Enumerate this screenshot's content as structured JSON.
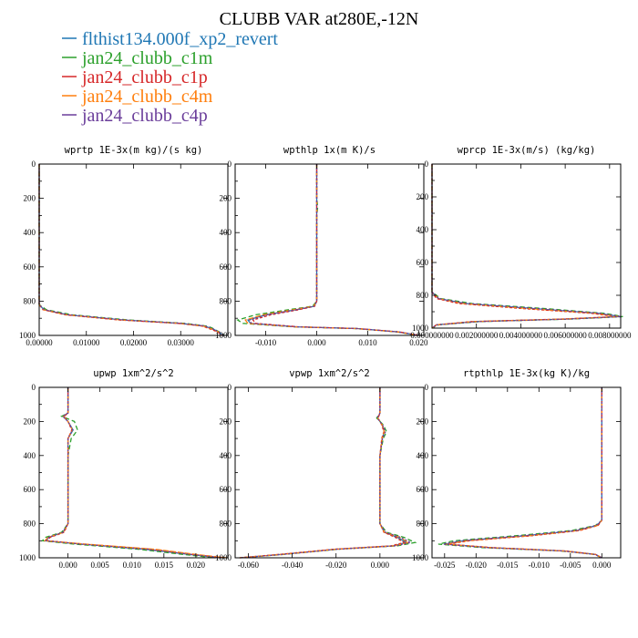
{
  "figure": {
    "title": "CLUBB VAR at280E,-12N"
  },
  "legend": [
    {
      "label": "flthist134.000f_xp2_revert",
      "color": "#1f77b4"
    },
    {
      "label": "jan24_clubb_c1m",
      "color": "#2ca02c"
    },
    {
      "label": "jan24_clubb_c1p",
      "color": "#d62728"
    },
    {
      "label": "jan24_clubb_c4m",
      "color": "#ff7f0e"
    },
    {
      "label": "jan24_clubb_c4p",
      "color": "#6a3d9a"
    }
  ],
  "chart_data": [
    {
      "type": "line",
      "title": "wprtp  1E-3x(m kg)/(s kg)",
      "xlim": [
        0,
        0.04
      ],
      "ylim": [
        1000,
        0
      ],
      "xticks": [
        0,
        0.01,
        0.02,
        0.03
      ],
      "xtick_labels": [
        "0.00000",
        "0.01000",
        "0.02000",
        "0.03000"
      ],
      "yticks": [
        0,
        200,
        400,
        600,
        800,
        1000
      ],
      "ytick_labels": [
        "0",
        "200",
        "400",
        "600",
        "800",
        "1000"
      ],
      "y": [
        0,
        500,
        820,
        850,
        880,
        910,
        930,
        945,
        955,
        965,
        980,
        1000
      ],
      "series": [
        {
          "name": "flthist134.000f_xp2_revert",
          "x": [
            0,
            0,
            0,
            0.001,
            0.006,
            0.018,
            0.03,
            0.035,
            0.036,
            0.037,
            0.038,
            0.039
          ]
        },
        {
          "name": "jan24_clubb_c1m",
          "x": [
            0,
            0,
            0,
            0.0015,
            0.007,
            0.019,
            0.031,
            0.0355,
            0.0365,
            0.0372,
            0.0382,
            0.0392
          ]
        },
        {
          "name": "jan24_clubb_c1p",
          "x": [
            0,
            0,
            0,
            0.0008,
            0.0055,
            0.017,
            0.0295,
            0.0345,
            0.0355,
            0.0365,
            0.0378,
            0.0388
          ]
        },
        {
          "name": "jan24_clubb_c4m",
          "x": [
            0,
            0,
            0,
            0.0009,
            0.0058,
            0.0175,
            0.0298,
            0.0348,
            0.0358,
            0.0368,
            0.038,
            0.039
          ]
        },
        {
          "name": "jan24_clubb_c4p",
          "x": [
            0,
            0,
            0,
            0.0011,
            0.0062,
            0.0182,
            0.0302,
            0.0352,
            0.0362,
            0.037,
            0.0381,
            0.0391
          ]
        }
      ]
    },
    {
      "type": "line",
      "title": "wpthlp  1x(m K)/s",
      "xlim": [
        -0.016,
        0.021
      ],
      "ylim": [
        1000,
        0
      ],
      "xticks": [
        -0.01,
        0,
        0.01,
        0.02
      ],
      "xtick_labels": [
        "-0.010",
        "0.000",
        "0.010",
        "0.020"
      ],
      "yticks": [
        0,
        200,
        400,
        600,
        800,
        1000
      ],
      "ytick_labels": [
        "0",
        "200",
        "400",
        "600",
        "800",
        "1000"
      ],
      "y": [
        0,
        200,
        250,
        300,
        400,
        800,
        830,
        850,
        880,
        910,
        930,
        950,
        960,
        980,
        1000
      ],
      "series": [
        {
          "name": "flthist134.000f_xp2_revert",
          "x": [
            0,
            0,
            0,
            0,
            0,
            0,
            -0.0005,
            -0.004,
            -0.01,
            -0.0135,
            -0.013,
            -0.004,
            0.008,
            0.016,
            0.02
          ]
        },
        {
          "name": "jan24_clubb_c1m",
          "x": [
            0,
            0,
            0.0002,
            0,
            0,
            0,
            -0.0008,
            -0.0055,
            -0.012,
            -0.0155,
            -0.0145,
            -0.0045,
            0.0075,
            0.0158,
            0.0198
          ]
        },
        {
          "name": "jan24_clubb_c1p",
          "x": [
            0,
            0,
            0,
            0,
            0,
            0,
            -0.0004,
            -0.0035,
            -0.009,
            -0.0125,
            -0.012,
            -0.0035,
            0.0082,
            0.0162,
            0.0202
          ]
        },
        {
          "name": "jan24_clubb_c4m",
          "x": [
            0,
            0,
            0,
            0,
            0,
            0,
            -0.0006,
            -0.0045,
            -0.0105,
            -0.014,
            -0.0135,
            -0.0042,
            0.0078,
            0.016,
            0.02
          ]
        },
        {
          "name": "jan24_clubb_c4p",
          "x": [
            0,
            0,
            0,
            0,
            0,
            0,
            -0.0005,
            -0.004,
            -0.0098,
            -0.0132,
            -0.0128,
            -0.0038,
            0.008,
            0.0161,
            0.0201
          ]
        }
      ]
    },
    {
      "type": "line",
      "title": "wprcp  1E-3x(m/s) (kg/kg)",
      "xlim": [
        0,
        0.0085
      ],
      "ylim": [
        1000,
        0
      ],
      "xticks": [
        0,
        0.002,
        0.004,
        0.006,
        0.008
      ],
      "xtick_labels": [
        "0.000000000",
        "0.002000000",
        "0.004000000",
        "0.006000000",
        "0.008000000"
      ],
      "yticks": [
        0,
        200,
        400,
        600,
        800,
        1000
      ],
      "ytick_labels": [
        "0",
        "200",
        "400",
        "600",
        "800",
        "1000"
      ],
      "y": [
        0,
        780,
        820,
        850,
        880,
        910,
        930,
        945,
        960,
        980,
        1000
      ],
      "series": [
        {
          "name": "flthist134.000f_xp2_revert",
          "x": [
            0,
            0,
            0.0003,
            0.0015,
            0.0045,
            0.0075,
            0.0085,
            0.006,
            0.002,
            0.0002,
            0
          ]
        },
        {
          "name": "jan24_clubb_c1m",
          "x": [
            0,
            0,
            0.0004,
            0.0018,
            0.005,
            0.0078,
            0.0086,
            0.0062,
            0.0022,
            0.0003,
            0
          ]
        },
        {
          "name": "jan24_clubb_c1p",
          "x": [
            0,
            0,
            0.0002,
            0.0012,
            0.004,
            0.0072,
            0.0083,
            0.0058,
            0.0018,
            0.0002,
            0
          ]
        },
        {
          "name": "jan24_clubb_c4m",
          "x": [
            0,
            0,
            0.0003,
            0.0014,
            0.0043,
            0.0074,
            0.0084,
            0.0059,
            0.0019,
            0.0002,
            0
          ]
        },
        {
          "name": "jan24_clubb_c4p",
          "x": [
            0,
            0,
            0.0003,
            0.0016,
            0.0047,
            0.0076,
            0.0085,
            0.0061,
            0.0021,
            0.0002,
            0
          ]
        }
      ]
    },
    {
      "type": "line",
      "title": "upwp  1xm^2/s^2",
      "xlim": [
        -0.0045,
        0.025
      ],
      "ylim": [
        1000,
        0
      ],
      "xticks": [
        0,
        0.005,
        0.01,
        0.015,
        0.02
      ],
      "xtick_labels": [
        "0.000",
        "0.005",
        "0.010",
        "0.015",
        "0.020"
      ],
      "yticks": [
        0,
        200,
        400,
        600,
        800,
        1000
      ],
      "ytick_labels": [
        "0",
        "200",
        "400",
        "600",
        "800",
        "1000"
      ],
      "y": [
        0,
        150,
        170,
        200,
        250,
        300,
        400,
        800,
        850,
        880,
        900,
        920,
        950,
        980,
        1000
      ],
      "series": [
        {
          "name": "flthist134.000f_xp2_revert",
          "x": [
            0,
            0,
            -0.0008,
            0,
            0.0008,
            0,
            0,
            0,
            -0.0008,
            -0.003,
            -0.0035,
            0.002,
            0.012,
            0.019,
            0.024
          ]
        },
        {
          "name": "jan24_clubb_c1m",
          "x": [
            0,
            0,
            -0.001,
            0.001,
            0.0015,
            0.0005,
            0,
            0,
            -0.001,
            -0.0035,
            -0.004,
            0.001,
            0.011,
            0.018,
            0.023
          ]
        },
        {
          "name": "jan24_clubb_c1p",
          "x": [
            0,
            0,
            -0.0006,
            0,
            0.0006,
            0,
            0,
            0,
            -0.0006,
            -0.0028,
            -0.0032,
            0.0025,
            0.013,
            0.0195,
            0.0245
          ]
        },
        {
          "name": "jan24_clubb_c4m",
          "x": [
            0,
            0,
            -0.0007,
            0,
            0.0007,
            0,
            0,
            0,
            -0.0007,
            -0.0031,
            -0.0036,
            0.0028,
            0.0135,
            0.02,
            0.0248
          ]
        },
        {
          "name": "jan24_clubb_c4p",
          "x": [
            0,
            0,
            -0.0008,
            0,
            0.0007,
            0,
            0,
            0,
            -0.0008,
            -0.003,
            -0.0034,
            0.0021,
            0.0122,
            0.0192,
            0.0242
          ]
        }
      ]
    },
    {
      "type": "line",
      "title": "vpwp  1xm^2/s^2",
      "xlim": [
        -0.066,
        0.02
      ],
      "ylim": [
        1000,
        0
      ],
      "xticks": [
        -0.06,
        -0.04,
        -0.02,
        0
      ],
      "xtick_labels": [
        "-0.060",
        "-0.040",
        "-0.020",
        "0.000"
      ],
      "yticks": [
        0,
        200,
        400,
        600,
        800,
        1000
      ],
      "ytick_labels": [
        "0",
        "200",
        "400",
        "600",
        "800",
        "1000"
      ],
      "y": [
        0,
        150,
        180,
        220,
        260,
        300,
        400,
        800,
        850,
        880,
        910,
        930,
        950,
        980,
        1000
      ],
      "series": [
        {
          "name": "flthist134.000f_xp2_revert",
          "x": [
            0,
            0,
            -0.001,
            0.001,
            0.002,
            0.001,
            0,
            0,
            0.002,
            0.008,
            0.012,
            0.006,
            -0.02,
            -0.045,
            -0.064
          ]
        },
        {
          "name": "jan24_clubb_c1m",
          "x": [
            0,
            0,
            -0.0015,
            0.0015,
            0.003,
            0.0015,
            0,
            0,
            0.003,
            0.011,
            0.016,
            0.008,
            -0.019,
            -0.044,
            -0.063
          ]
        },
        {
          "name": "jan24_clubb_c1p",
          "x": [
            0,
            0,
            -0.0008,
            0.0008,
            0.0018,
            0.0008,
            0,
            0,
            0.0018,
            0.007,
            0.011,
            0.005,
            -0.021,
            -0.046,
            -0.064
          ]
        },
        {
          "name": "jan24_clubb_c4m",
          "x": [
            0,
            0,
            -0.001,
            0.001,
            0.002,
            0.001,
            0,
            0,
            0.002,
            0.009,
            0.013,
            0.0065,
            -0.02,
            -0.045,
            -0.064
          ]
        },
        {
          "name": "jan24_clubb_c4p",
          "x": [
            0,
            0,
            -0.0012,
            0.0012,
            0.0025,
            0.0012,
            0,
            0,
            0.0025,
            0.0095,
            0.014,
            0.007,
            -0.0195,
            -0.0445,
            -0.0635
          ]
        }
      ]
    },
    {
      "type": "line",
      "title": "rtpthlp  1E-3x(kg K)/kg",
      "xlim": [
        -0.027,
        0.003
      ],
      "ylim": [
        1000,
        0
      ],
      "xticks": [
        -0.025,
        -0.02,
        -0.015,
        -0.01,
        -0.005,
        0
      ],
      "xtick_labels": [
        "-0.025",
        "-0.020",
        "-0.015",
        "-0.010",
        "-0.005",
        "0.000"
      ],
      "yticks": [
        0,
        200,
        400,
        600,
        800,
        1000
      ],
      "ytick_labels": [
        "0",
        "200",
        "400",
        "600",
        "800",
        "1000"
      ],
      "y": [
        0,
        500,
        780,
        810,
        840,
        870,
        900,
        920,
        940,
        960,
        980,
        1000
      ],
      "series": [
        {
          "name": "flthist134.000f_xp2_revert",
          "x": [
            0,
            0,
            0,
            -0.0008,
            -0.004,
            -0.012,
            -0.022,
            -0.025,
            -0.018,
            -0.006,
            -0.001,
            0
          ]
        },
        {
          "name": "jan24_clubb_c1m",
          "x": [
            0,
            0,
            0,
            -0.001,
            -0.0048,
            -0.0135,
            -0.0235,
            -0.026,
            -0.019,
            -0.0065,
            -0.0012,
            0
          ]
        },
        {
          "name": "jan24_clubb_c1p",
          "x": [
            0,
            0,
            0,
            -0.0006,
            -0.0035,
            -0.011,
            -0.021,
            -0.0245,
            -0.0175,
            -0.0058,
            -0.001,
            0
          ]
        },
        {
          "name": "jan24_clubb_c4m",
          "x": [
            0,
            0,
            0,
            -0.0007,
            -0.0038,
            -0.0115,
            -0.0215,
            -0.0248,
            -0.0178,
            -0.006,
            -0.001,
            0
          ]
        },
        {
          "name": "jan24_clubb_c4p",
          "x": [
            0,
            0,
            0,
            -0.0009,
            -0.0042,
            -0.0125,
            -0.0225,
            -0.0252,
            -0.0182,
            -0.0062,
            -0.0011,
            0
          ]
        }
      ]
    }
  ]
}
